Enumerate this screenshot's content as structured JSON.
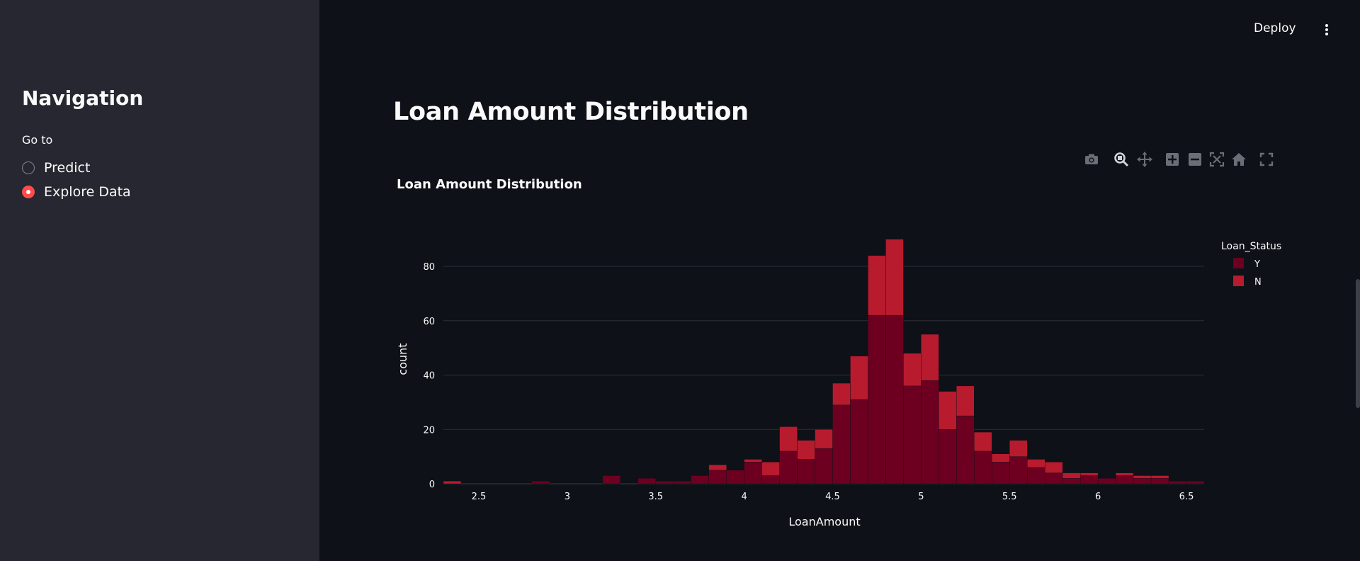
{
  "sidebar": {
    "title": "Navigation",
    "radio_label": "Go to",
    "options": [
      {
        "label": "Predict",
        "selected": false
      },
      {
        "label": "Explore Data",
        "selected": true
      }
    ]
  },
  "header": {
    "deploy_label": "Deploy",
    "menu_icon": "vertical-ellipsis-icon"
  },
  "main": {
    "title": "Loan Amount Distribution"
  },
  "modebar": {
    "icons": [
      "camera-icon",
      "zoom-icon",
      "pan-icon",
      "zoom-in-icon",
      "zoom-out-icon",
      "autoscale-icon",
      "home-icon",
      "fullscreen-icon"
    ]
  },
  "colors": {
    "Y": "#6d0020",
    "N": "#b81b2e",
    "accent": "#ff4b4b",
    "background": "#0e1117",
    "sidebar": "#262730"
  },
  "chart_data": {
    "type": "bar",
    "barmode": "stack",
    "title": "Loan Amount Distribution",
    "xlabel": "LoanAmount",
    "ylabel": "count",
    "xlim": [
      2.3,
      6.6
    ],
    "ylim": [
      0,
      92
    ],
    "bin_width": 0.1,
    "xticks": [
      2.5,
      3,
      3.5,
      4,
      4.5,
      5,
      5.5,
      6,
      6.5
    ],
    "yticks": [
      0,
      20,
      40,
      60,
      80
    ],
    "grid": true,
    "legend": {
      "title": "Loan_Status",
      "position": "top-right",
      "entries": [
        "Y",
        "N"
      ]
    },
    "x_start": [
      2.3,
      2.4,
      2.5,
      2.6,
      2.7,
      2.8,
      2.9,
      3.0,
      3.1,
      3.2,
      3.3,
      3.4,
      3.5,
      3.6,
      3.7,
      3.8,
      3.9,
      4.0,
      4.1,
      4.2,
      4.3,
      4.4,
      4.5,
      4.6,
      4.7,
      4.8,
      4.9,
      5.0,
      5.1,
      5.2,
      5.3,
      5.4,
      5.5,
      5.6,
      5.7,
      5.8,
      5.9,
      6.0,
      6.1,
      6.2,
      6.3,
      6.4,
      6.5
    ],
    "series": [
      {
        "name": "Y",
        "values": [
          0,
          0,
          0,
          0,
          0,
          1,
          0,
          0,
          0,
          3,
          0,
          2,
          1,
          1,
          3,
          5,
          5,
          8,
          3,
          12,
          9,
          13,
          29,
          31,
          62,
          62,
          36,
          38,
          20,
          25,
          12,
          8,
          10,
          6,
          4,
          2,
          3,
          2,
          3,
          2,
          2,
          1,
          1
        ]
      },
      {
        "name": "N",
        "values": [
          1,
          0,
          0,
          0,
          0,
          0,
          0,
          0,
          0,
          0,
          0,
          0,
          0,
          0,
          0,
          2,
          0,
          1,
          5,
          9,
          7,
          7,
          8,
          16,
          22,
          28,
          12,
          17,
          14,
          11,
          7,
          3,
          6,
          3,
          4,
          2,
          1,
          0,
          1,
          1,
          1,
          0,
          0
        ]
      }
    ]
  }
}
